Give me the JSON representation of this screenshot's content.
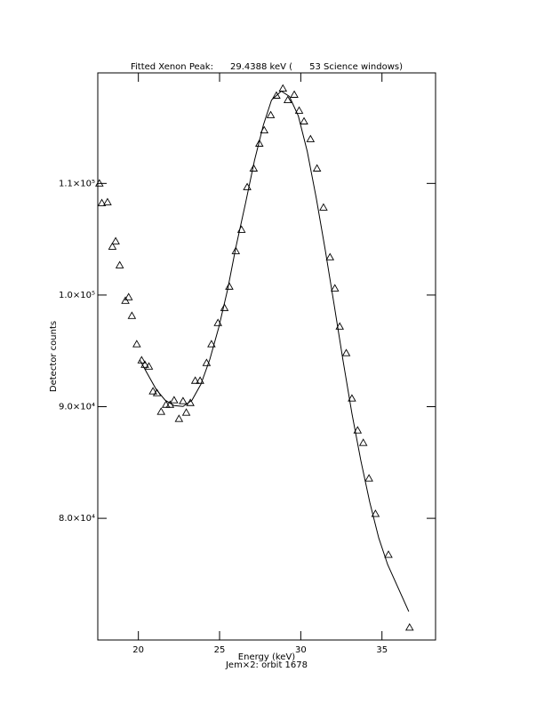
{
  "chart_data": {
    "type": "scatter",
    "title": "Fitted Xenon Peak:      29.4388 keV (      53 Science windows)",
    "x_label": "Energy (keV)",
    "subtitle": "Jem×2: orbit 1678",
    "y_label": "Detector counts",
    "xlim": [
      17.5,
      38.3
    ],
    "ylim": [
      69100,
      119900
    ],
    "xticks": [
      20,
      25,
      30,
      35
    ],
    "yticks": [
      {
        "value": 80000,
        "label": "8.0×10⁴"
      },
      {
        "value": 90000,
        "label": "9.0×10⁴"
      },
      {
        "value": 100000,
        "label": "1.0×10⁵"
      },
      {
        "value": 110000,
        "label": "1.1×10⁵"
      }
    ],
    "color": "#000000",
    "points": {
      "x": [
        17.6,
        17.75,
        18.1,
        18.4,
        18.6,
        18.85,
        19.2,
        19.4,
        19.6,
        19.9,
        20.2,
        20.4,
        20.65,
        20.9,
        21.15,
        21.4,
        21.7,
        21.95,
        22.2,
        22.5,
        22.75,
        22.95,
        23.2,
        23.5,
        23.8,
        24.2,
        24.5,
        24.9,
        25.3,
        25.6,
        26.0,
        26.35,
        26.7,
        27.1,
        27.45,
        27.75,
        28.15,
        28.5,
        28.9,
        29.2,
        29.6,
        29.9,
        30.2,
        30.6,
        31.0,
        31.4,
        31.8,
        32.1,
        32.4,
        32.8,
        33.15,
        33.5,
        33.85,
        34.2,
        34.6,
        35.4,
        36.7
      ],
      "y": [
        110000,
        108240,
        108320,
        104340,
        104820,
        102670,
        99490,
        99810,
        98140,
        95600,
        94160,
        93760,
        93600,
        91380,
        91220,
        89550,
        90180,
        90180,
        90580,
        88910,
        90500,
        89470,
        90340,
        92330,
        92330,
        93920,
        95600,
        97500,
        98850,
        100760,
        103940,
        105850,
        109670,
        111340,
        113570,
        114760,
        116120,
        117870,
        118500,
        117470,
        117950,
        116520,
        115560,
        113970,
        111340,
        107840,
        103390,
        100600,
        97180,
        94800,
        90740,
        87880,
        86760,
        83580,
        80400,
        76740,
        70220
      ]
    },
    "fit": {
      "x": [
        20.1,
        20.55,
        21.1,
        21.65,
        22.2,
        22.75,
        23.3,
        23.85,
        24.4,
        24.95,
        25.5,
        26.0,
        26.6,
        27.15,
        27.7,
        28.2,
        28.8,
        29.3,
        29.85,
        30.4,
        30.95,
        31.5,
        32.05,
        32.6,
        33.15,
        33.7,
        34.25,
        34.8,
        35.35,
        36.65
      ],
      "y": [
        94160,
        92970,
        91540,
        90580,
        90100,
        90020,
        90580,
        92010,
        94240,
        97100,
        100520,
        104260,
        108240,
        112060,
        115240,
        117470,
        118270,
        117790,
        116040,
        112860,
        108720,
        104100,
        99170,
        94160,
        89390,
        85170,
        81430,
        78250,
        75860,
        71650
      ]
    }
  }
}
